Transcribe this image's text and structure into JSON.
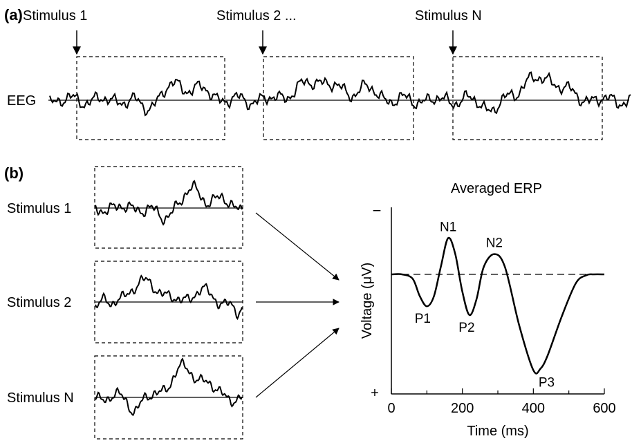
{
  "panel_a": {
    "tag": "(a)",
    "eeg_label": "EEG",
    "stimuli": [
      "Stimulus 1",
      "Stimulus 2 ...",
      "Stimulus N"
    ]
  },
  "panel_b": {
    "tag": "(b)",
    "epochs": [
      "Stimulus 1",
      "Stimulus 2",
      "Stimulus N"
    ]
  },
  "chart_data": {
    "type": "line",
    "title": "Averaged ERP",
    "xlabel": "Time (ms)",
    "ylabel": "Voltage (μV)",
    "xlim": [
      0,
      600
    ],
    "x_ticks": [
      "0",
      "200",
      "400",
      "600"
    ],
    "y_top_sign": "−",
    "y_bottom_sign": "+",
    "y_inverted": true,
    "baseline": "dashed",
    "series": [
      {
        "x": [
          0,
          30,
          60,
          80,
          100,
          120,
          140,
          160,
          180,
          200,
          220,
          240,
          260,
          290,
          320,
          360,
          400,
          420,
          440,
          480,
          520,
          550,
          570,
          600
        ],
        "y": [
          0,
          0,
          -0.3,
          -1.5,
          -2.2,
          -1.5,
          0.6,
          2.5,
          1.4,
          -1.2,
          -2.8,
          -1.7,
          0.5,
          1.4,
          0.5,
          -3.5,
          -6.6,
          -6.5,
          -5.6,
          -2.9,
          -0.6,
          -0.05,
          0,
          0
        ]
      }
    ],
    "peaks": [
      {
        "label": "P1",
        "x": 100,
        "y": -2.2
      },
      {
        "label": "N1",
        "x": 160,
        "y": 2.5
      },
      {
        "label": "P2",
        "x": 220,
        "y": -2.8
      },
      {
        "label": "N2",
        "x": 290,
        "y": 1.4
      },
      {
        "label": "P3",
        "x": 410,
        "y": -6.6
      }
    ]
  }
}
